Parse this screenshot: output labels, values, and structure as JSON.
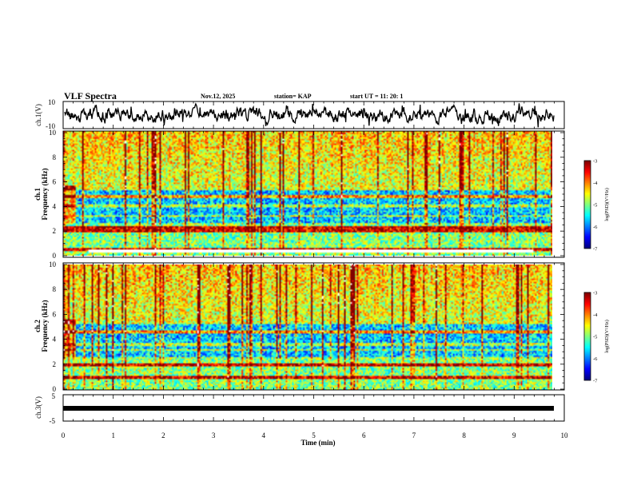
{
  "header": {
    "title": "VLF Spectra",
    "date": "Nov.12, 2025",
    "station": "station= KAP",
    "start_ut": "start UT =   11: 20: 1"
  },
  "chart_data": [
    {
      "id": "ch1-waveform",
      "type": "line",
      "ylabel": "ch.1(V)",
      "ylim": [
        -10,
        10
      ],
      "ytick_labels": [
        "10",
        "-10"
      ],
      "xlim": [
        0,
        10
      ]
    },
    {
      "id": "ch1-spectrogram",
      "type": "heatmap",
      "ylabel": "ch.1  Frequency (kHz)",
      "ylabel_line1": "ch.1",
      "ylabel_line2": "Frequency (kHz)",
      "ylim": [
        0,
        10
      ],
      "ytick_labels": [
        "0",
        "2",
        "4",
        "6",
        "8",
        "10"
      ],
      "colorbar": {
        "label": "log(PSD)(V²/Hz)",
        "range": [
          -7,
          -3
        ],
        "tick_labels": [
          "-3",
          "-4",
          "-5",
          "-6",
          "-7"
        ]
      },
      "strong_bands_khz": [
        0.5,
        2.0,
        2.3,
        4.8
      ],
      "weak_bands_khz": [
        3.2,
        4.0
      ]
    },
    {
      "id": "ch2-spectrogram",
      "type": "heatmap",
      "ylabel": "ch.2  Frequency (kHz)",
      "ylabel_line1": "ch.2",
      "ylabel_line2": "Frequency (kHz)",
      "ylim": [
        0,
        10
      ],
      "ytick_labels": [
        "0",
        "2",
        "4",
        "6",
        "8",
        "10"
      ],
      "colorbar": {
        "label": "log(PSD)(V²/Hz)",
        "range": [
          -7,
          -3
        ],
        "tick_labels": [
          "-3",
          "-4",
          "-5",
          "-6",
          "-7"
        ]
      },
      "strong_bands_khz": [
        1.0,
        2.0,
        4.6
      ],
      "weak_bands_khz": [
        3.2,
        3.6
      ]
    },
    {
      "id": "ch3-waveform",
      "type": "line",
      "ylabel": "ch.3(V)",
      "ylim": [
        -5,
        5
      ],
      "ytick_labels": [
        "5",
        "-5"
      ],
      "xlabel": "Time (min)",
      "xlim": [
        0,
        10
      ],
      "xtick_labels": [
        "0",
        "1",
        "2",
        "3",
        "4",
        "5",
        "6",
        "7",
        "8",
        "9",
        "10"
      ]
    }
  ],
  "colors": {
    "scale": [
      "#00007f",
      "#0000ff",
      "#0080ff",
      "#00ffff",
      "#80ff80",
      "#ffff00",
      "#ff8000",
      "#ff0000",
      "#7f0000"
    ]
  }
}
